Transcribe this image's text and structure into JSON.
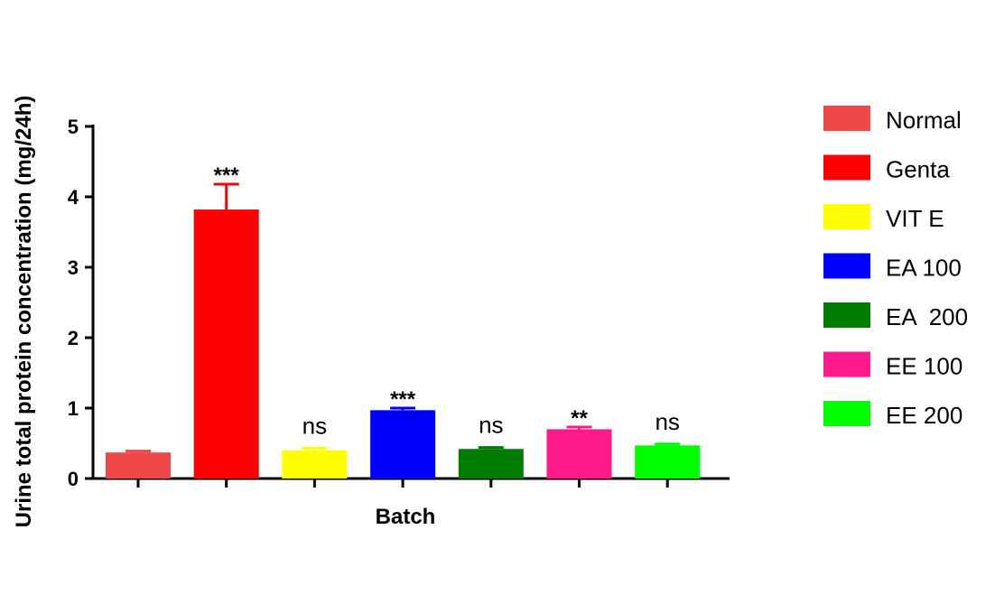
{
  "chart_data": {
    "type": "bar",
    "categories": [
      "Normal",
      "Genta",
      "VIT E",
      "EA 100",
      "EA  200",
      "EE 100",
      "EE 200"
    ],
    "values": [
      0.37,
      3.82,
      0.4,
      0.97,
      0.42,
      0.7,
      0.47
    ],
    "errors": [
      0.02,
      0.36,
      0.03,
      0.03,
      0.02,
      0.03,
      0.02
    ],
    "significance": [
      "",
      "***",
      "ns",
      "***",
      "ns",
      "**",
      "ns"
    ],
    "colors": [
      "#f04848",
      "#ff0000",
      "#ffff00",
      "#0000ff",
      "#007d00",
      "#ff1a8c",
      "#00ff00"
    ],
    "xlabel": "Batch",
    "ylabel": "Urine total protein concentration (mg/24h)",
    "ylim": [
      0,
      5
    ],
    "yticks": [
      "0",
      "1",
      "2",
      "3",
      "4",
      "5"
    ],
    "grid": false,
    "legend_position": "right"
  }
}
